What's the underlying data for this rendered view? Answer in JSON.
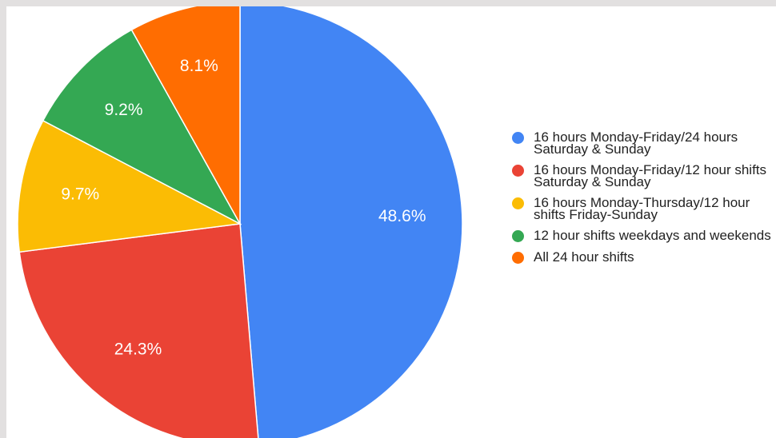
{
  "chart_data": {
    "type": "pie",
    "categories": [
      "16 hours Monday-Friday/24 hours Saturday & Sunday",
      "16 hours Monday-Friday/12 hour shifts Saturday & Sunday",
      "16 hours Monday-Thursday/12 hour shifts Friday-Sunday",
      "12 hour shifts weekdays and weekends",
      "All 24 hour shifts"
    ],
    "values": [
      48.6,
      24.3,
      9.7,
      9.2,
      8.1
    ],
    "value_labels": [
      "48.6%",
      "24.3%",
      "9.7%",
      "9.2%",
      "8.1%"
    ],
    "colors": [
      "#4285f4",
      "#ea4335",
      "#fbbc04",
      "#34a853",
      "#ff6d01"
    ],
    "legend": "right"
  }
}
